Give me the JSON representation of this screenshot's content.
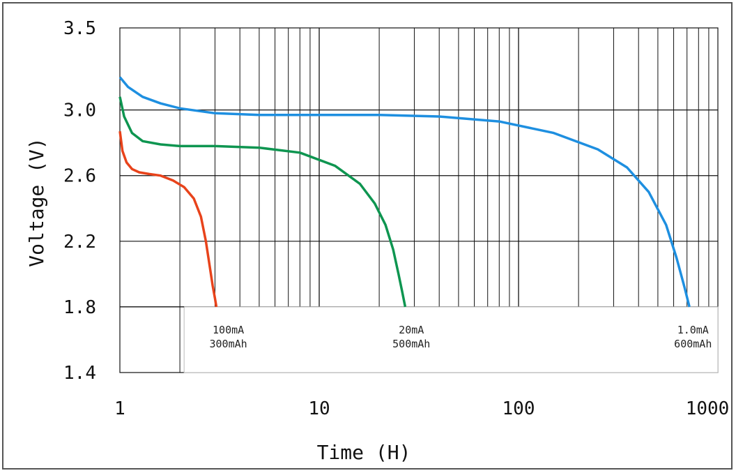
{
  "chart_data": {
    "type": "line",
    "title": "",
    "xlabel": "Time (H)",
    "ylabel": "Voltage (V)",
    "xscale": "log",
    "xlim": [
      1,
      1000
    ],
    "ylim": [
      1.4,
      3.5
    ],
    "grid": true,
    "x_ticks": [
      "1",
      "10",
      "100",
      "1000"
    ],
    "y_ticks": [
      "3.5",
      "3.0",
      "2.6",
      "2.2",
      "1.8",
      "1.4"
    ],
    "colors": {
      "red": "#e8431b",
      "green": "#0e9550",
      "blue": "#1e8fe0",
      "grid": "#111111"
    },
    "series": [
      {
        "color": "red",
        "x": [
          1.0,
          1.03,
          1.08,
          1.15,
          1.25,
          1.4,
          1.6,
          1.85,
          2.1,
          2.35,
          2.55,
          2.7,
          2.82,
          2.92,
          3.0,
          3.05
        ],
        "y": [
          2.87,
          2.75,
          2.68,
          2.64,
          2.62,
          2.61,
          2.6,
          2.57,
          2.53,
          2.46,
          2.35,
          2.2,
          2.05,
          1.93,
          1.85,
          1.8
        ]
      },
      {
        "color": "green",
        "x": [
          1.0,
          1.05,
          1.15,
          1.3,
          1.6,
          2.0,
          3.0,
          5.0,
          8.0,
          12.0,
          16.0,
          19.0,
          21.5,
          23.5,
          25.0,
          26.0,
          27.0
        ],
        "y": [
          3.08,
          2.96,
          2.86,
          2.81,
          2.79,
          2.78,
          2.78,
          2.77,
          2.74,
          2.66,
          2.55,
          2.43,
          2.3,
          2.15,
          2.0,
          1.9,
          1.8
        ]
      },
      {
        "color": "blue",
        "x": [
          1.0,
          1.1,
          1.3,
          1.6,
          2.0,
          3.0,
          5.0,
          10.0,
          20.0,
          40.0,
          80.0,
          150.0,
          250.0,
          350.0,
          450.0,
          550.0,
          620.0,
          680.0,
          720.0
        ],
        "y": [
          3.2,
          3.14,
          3.08,
          3.04,
          3.01,
          2.98,
          2.97,
          2.97,
          2.97,
          2.96,
          2.93,
          2.86,
          2.76,
          2.65,
          2.5,
          2.3,
          2.1,
          1.92,
          1.8
        ]
      }
    ],
    "annotations": [
      {
        "line1": "100mA",
        "line2": "300mAh",
        "x": 3.5
      },
      {
        "line1": "20mA",
        "line2": "500mAh",
        "x": 29
      },
      {
        "line1": "1.0mA",
        "line2": "600mAh",
        "x": 750
      }
    ]
  }
}
